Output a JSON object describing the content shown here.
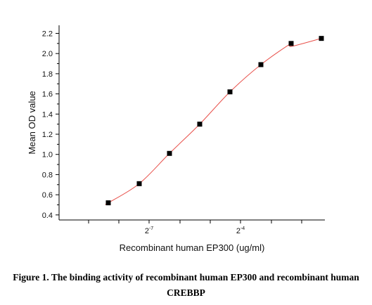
{
  "chart_data": {
    "type": "scatter",
    "x": [
      "",
      "",
      "",
      "",
      "",
      "",
      "",
      ""
    ],
    "series": [
      {
        "name": "",
        "values": [
          0.52,
          0.71,
          1.01,
          1.3,
          1.62,
          1.89,
          2.1,
          2.15
        ],
        "marker": "square",
        "fit_line": "sigmoid"
      }
    ],
    "xlabel": "Recombinant human EP300 (ug/ml)",
    "ylabel": "Mean OD value",
    "x_scale": "log2",
    "xtick_labels": [
      {
        "base": "2",
        "exp": "-7"
      },
      {
        "base": "2",
        "exp": "-4"
      }
    ],
    "yticks": [
      "0.4",
      "0.6",
      "0.8",
      "1.0",
      "1.2",
      "1.4",
      "1.6",
      "1.8",
      "2.0",
      "2.2"
    ],
    "ylim": [
      0.35,
      2.28
    ],
    "grid": false,
    "colors": {
      "marker": "#000000",
      "fit_line": "#e8504a",
      "axis": "#000000"
    }
  },
  "caption": {
    "line1": "Figure 1. The binding activity of recombinant human EP300 and recombinant human",
    "line2": "CREBBP"
  }
}
